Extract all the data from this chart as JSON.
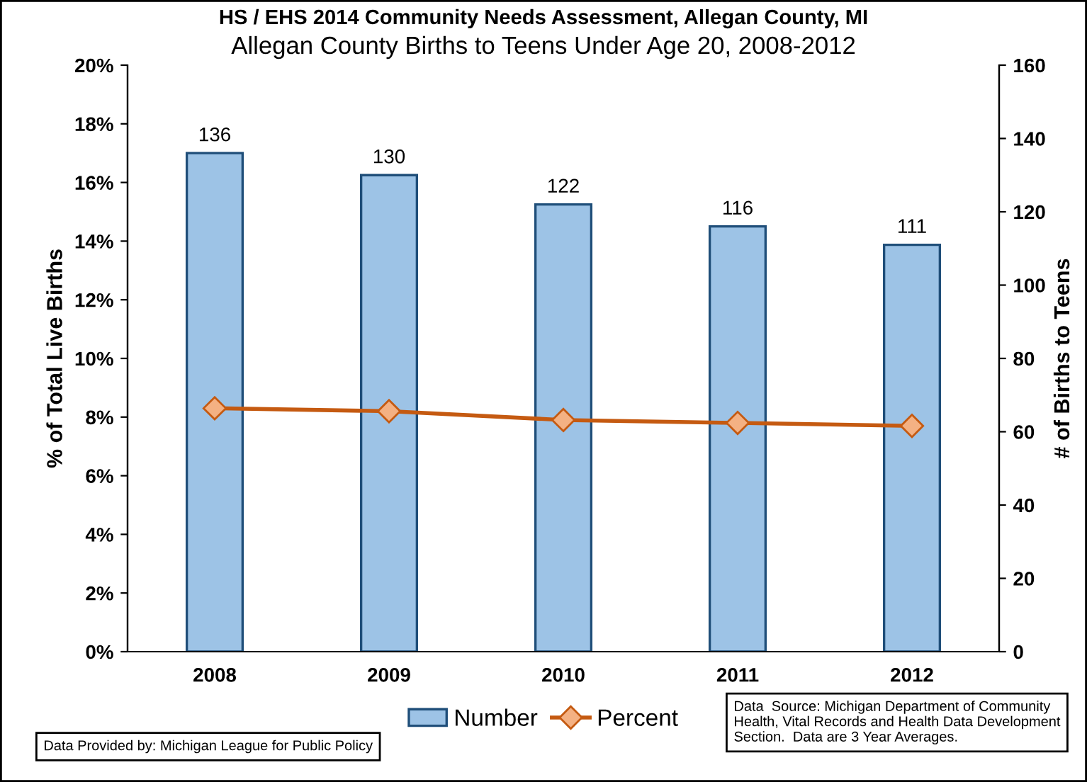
{
  "chart_data": {
    "type": "bar",
    "title": "HS / EHS 2014 Community Needs Assessment, Allegan County, MI",
    "subtitle": "Allegan County Births to Teens Under Age 20, 2008-2012",
    "ylabel": "% of Total Live Births",
    "y2label": "# of Births to Teens",
    "categories": [
      "2008",
      "2009",
      "2010",
      "2011",
      "2012"
    ],
    "series": [
      {
        "name": "Number",
        "axis": "y2",
        "color": "#9dc3e6",
        "values": [
          136,
          130,
          122,
          116,
          111
        ],
        "data_labels": true
      },
      {
        "name": "Percent",
        "type": "line",
        "axis": "y",
        "color": "#c55a11",
        "marker": "diamond",
        "values": [
          8.3,
          8.2,
          7.9,
          7.8,
          7.7
        ]
      }
    ],
    "ylim": [
      0,
      20
    ],
    "yticks": [
      {
        "value": 0,
        "label": "0%"
      },
      {
        "value": 2,
        "label": "2%"
      },
      {
        "value": 4,
        "label": "4%"
      },
      {
        "value": 6,
        "label": "6%"
      },
      {
        "value": 8,
        "label": "8%"
      },
      {
        "value": 10,
        "label": "10%"
      },
      {
        "value": 12,
        "label": "12%"
      },
      {
        "value": 14,
        "label": "14%"
      },
      {
        "value": 16,
        "label": "16%"
      },
      {
        "value": 18,
        "label": "18%"
      },
      {
        "value": 20,
        "label": "20%"
      }
    ],
    "y2lim": [
      0,
      160
    ],
    "y2ticks": [
      0,
      20,
      40,
      60,
      80,
      100,
      120,
      140,
      160
    ],
    "grid": false,
    "legend": "bottom",
    "annotations": [
      "Data Provided by: Michigan League for Public Policy",
      "Data  Source: Michigan Department of Community Health, Vital Records and Health Data Development Section.  Data are 3 Year Averages."
    ]
  }
}
